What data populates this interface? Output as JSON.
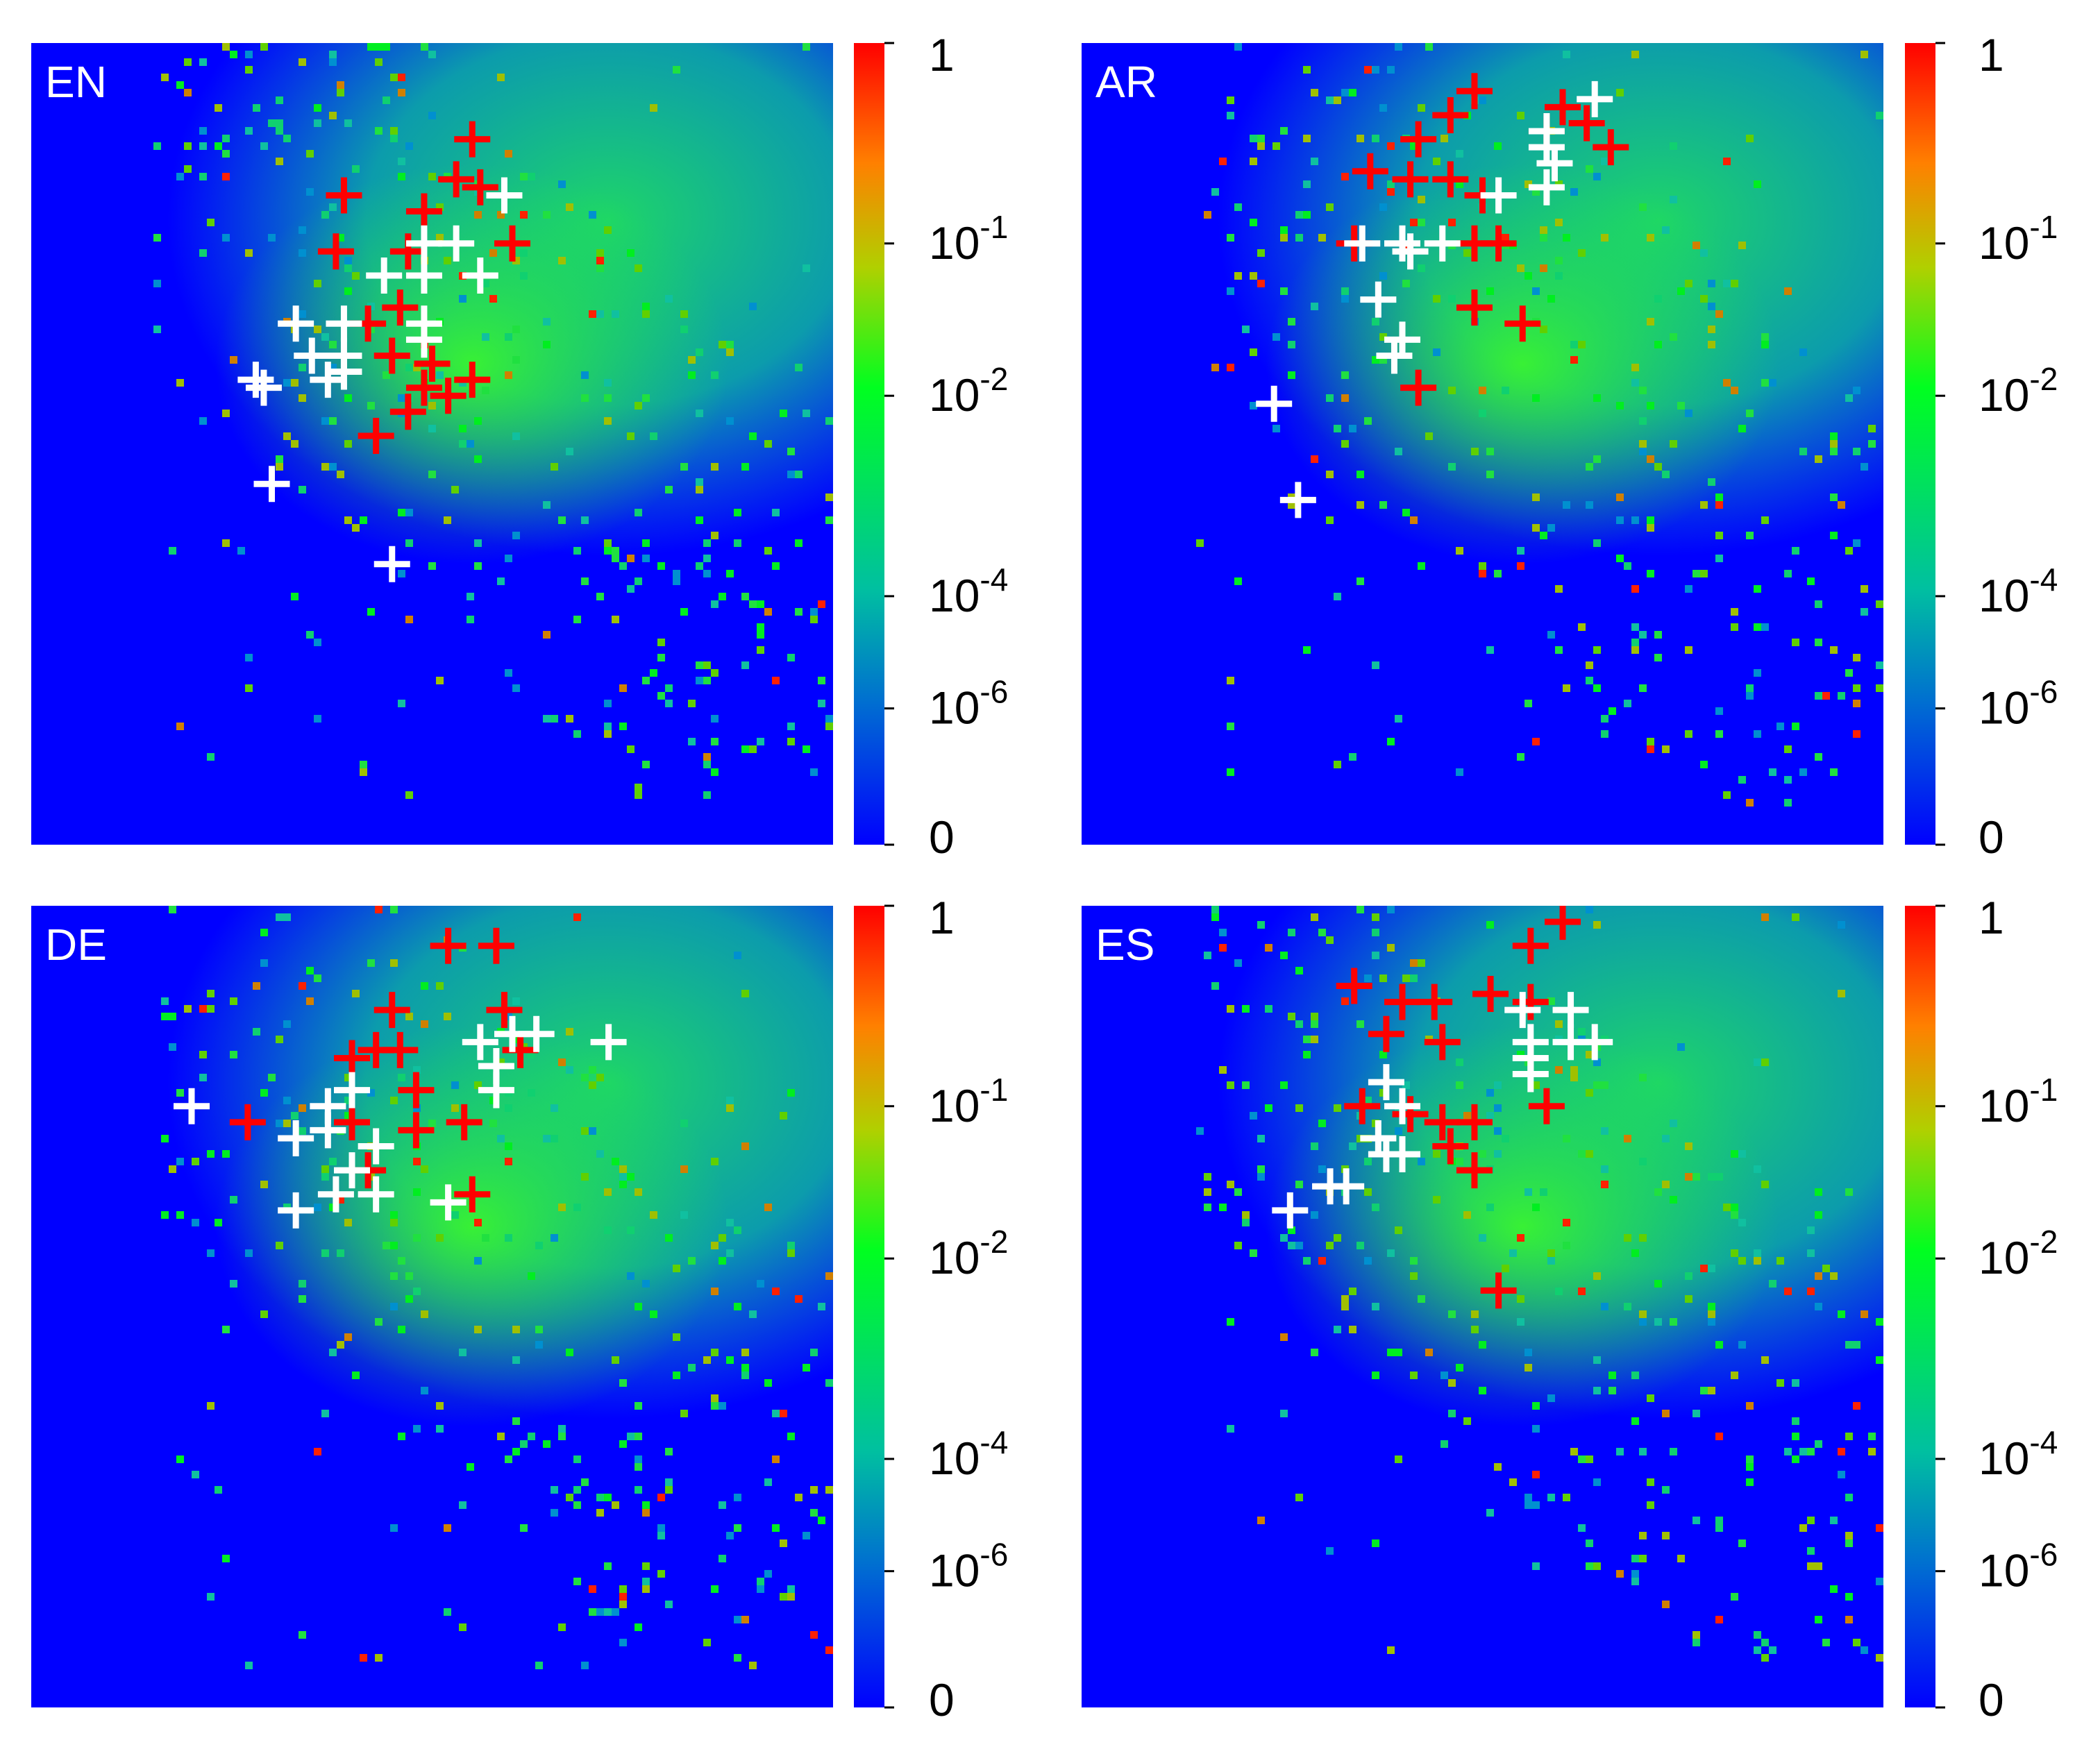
{
  "chart_data": [
    {
      "type": "heatmap",
      "panel_label": "EN",
      "colorbar": {
        "scale": "log",
        "range": [
          0,
          1
        ],
        "ticks": [
          {
            "label": "1",
            "exp": ""
          },
          {
            "label": "10",
            "exp": "-1"
          },
          {
            "label": "10",
            "exp": "-2"
          },
          {
            "label": "10",
            "exp": "-4"
          },
          {
            "label": "10",
            "exp": "-6"
          },
          {
            "label": "0",
            "exp": ""
          }
        ]
      },
      "red_markers": [
        [
          0.55,
          0.12
        ],
        [
          0.39,
          0.19
        ],
        [
          0.49,
          0.21
        ],
        [
          0.53,
          0.17
        ],
        [
          0.56,
          0.18
        ],
        [
          0.38,
          0.26
        ],
        [
          0.47,
          0.26
        ],
        [
          0.6,
          0.25
        ],
        [
          0.42,
          0.35
        ],
        [
          0.46,
          0.33
        ],
        [
          0.45,
          0.39
        ],
        [
          0.5,
          0.4
        ],
        [
          0.55,
          0.42
        ],
        [
          0.52,
          0.44
        ],
        [
          0.47,
          0.46
        ],
        [
          0.43,
          0.49
        ],
        [
          0.49,
          0.43
        ]
      ],
      "white_markers": [
        [
          0.59,
          0.19
        ],
        [
          0.49,
          0.25
        ],
        [
          0.53,
          0.25
        ],
        [
          0.44,
          0.29
        ],
        [
          0.49,
          0.29
        ],
        [
          0.56,
          0.29
        ],
        [
          0.33,
          0.35
        ],
        [
          0.39,
          0.35
        ],
        [
          0.49,
          0.35
        ],
        [
          0.35,
          0.39
        ],
        [
          0.39,
          0.39
        ],
        [
          0.49,
          0.37
        ],
        [
          0.37,
          0.42
        ],
        [
          0.39,
          0.41
        ],
        [
          0.28,
          0.42
        ],
        [
          0.29,
          0.43
        ],
        [
          0.3,
          0.55
        ],
        [
          0.45,
          0.65
        ]
      ]
    },
    {
      "type": "heatmap",
      "panel_label": "AR",
      "colorbar": {
        "scale": "log",
        "range": [
          0,
          1
        ],
        "ticks": [
          {
            "label": "1",
            "exp": ""
          },
          {
            "label": "10",
            "exp": "-1"
          },
          {
            "label": "10",
            "exp": "-2"
          },
          {
            "label": "10",
            "exp": "-4"
          },
          {
            "label": "10",
            "exp": "-6"
          },
          {
            "label": "0",
            "exp": ""
          }
        ]
      },
      "red_markers": [
        [
          0.49,
          0.06
        ],
        [
          0.46,
          0.09
        ],
        [
          0.42,
          0.12
        ],
        [
          0.36,
          0.16
        ],
        [
          0.41,
          0.17
        ],
        [
          0.46,
          0.17
        ],
        [
          0.5,
          0.19
        ],
        [
          0.6,
          0.08
        ],
        [
          0.63,
          0.1
        ],
        [
          0.66,
          0.13
        ],
        [
          0.58,
          0.11
        ],
        [
          0.34,
          0.25
        ],
        [
          0.49,
          0.25
        ],
        [
          0.52,
          0.25
        ],
        [
          0.49,
          0.33
        ],
        [
          0.55,
          0.35
        ],
        [
          0.42,
          0.43
        ]
      ],
      "white_markers": [
        [
          0.64,
          0.07
        ],
        [
          0.58,
          0.11
        ],
        [
          0.58,
          0.13
        ],
        [
          0.59,
          0.15
        ],
        [
          0.52,
          0.19
        ],
        [
          0.58,
          0.18
        ],
        [
          0.35,
          0.25
        ],
        [
          0.4,
          0.25
        ],
        [
          0.41,
          0.26
        ],
        [
          0.45,
          0.25
        ],
        [
          0.37,
          0.32
        ],
        [
          0.4,
          0.37
        ],
        [
          0.39,
          0.39
        ],
        [
          0.24,
          0.45
        ],
        [
          0.27,
          0.57
        ]
      ]
    },
    {
      "type": "heatmap",
      "panel_label": "DE",
      "colorbar": {
        "scale": "log",
        "range": [
          0,
          1
        ],
        "ticks": [
          {
            "label": "1",
            "exp": ""
          },
          {
            "label": "10",
            "exp": "-1"
          },
          {
            "label": "10",
            "exp": "-2"
          },
          {
            "label": "10",
            "exp": "-4"
          },
          {
            "label": "10",
            "exp": "-6"
          },
          {
            "label": "0",
            "exp": ""
          }
        ]
      },
      "red_markers": [
        [
          0.52,
          0.05
        ],
        [
          0.58,
          0.05
        ],
        [
          0.45,
          0.13
        ],
        [
          0.59,
          0.13
        ],
        [
          0.4,
          0.19
        ],
        [
          0.43,
          0.18
        ],
        [
          0.46,
          0.18
        ],
        [
          0.61,
          0.18
        ],
        [
          0.48,
          0.23
        ],
        [
          0.27,
          0.27
        ],
        [
          0.4,
          0.27
        ],
        [
          0.48,
          0.28
        ],
        [
          0.54,
          0.27
        ],
        [
          0.42,
          0.33
        ],
        [
          0.55,
          0.36
        ]
      ],
      "white_markers": [
        [
          0.56,
          0.17
        ],
        [
          0.6,
          0.16
        ],
        [
          0.63,
          0.16
        ],
        [
          0.72,
          0.17
        ],
        [
          0.58,
          0.2
        ],
        [
          0.58,
          0.23
        ],
        [
          0.4,
          0.23
        ],
        [
          0.2,
          0.25
        ],
        [
          0.37,
          0.25
        ],
        [
          0.33,
          0.29
        ],
        [
          0.37,
          0.28
        ],
        [
          0.43,
          0.3
        ],
        [
          0.4,
          0.33
        ],
        [
          0.43,
          0.36
        ],
        [
          0.38,
          0.36
        ],
        [
          0.52,
          0.37
        ],
        [
          0.33,
          0.38
        ]
      ]
    },
    {
      "type": "heatmap",
      "panel_label": "ES",
      "colorbar": {
        "scale": "log",
        "range": [
          0,
          1
        ],
        "ticks": [
          {
            "label": "1",
            "exp": ""
          },
          {
            "label": "10",
            "exp": "-1"
          },
          {
            "label": "10",
            "exp": "-2"
          },
          {
            "label": "10",
            "exp": "-4"
          },
          {
            "label": "10",
            "exp": "-6"
          },
          {
            "label": "0",
            "exp": ""
          }
        ]
      },
      "red_markers": [
        [
          0.6,
          0.02
        ],
        [
          0.56,
          0.05
        ],
        [
          0.34,
          0.1
        ],
        [
          0.4,
          0.12
        ],
        [
          0.44,
          0.12
        ],
        [
          0.51,
          0.11
        ],
        [
          0.56,
          0.12
        ],
        [
          0.38,
          0.16
        ],
        [
          0.45,
          0.17
        ],
        [
          0.35,
          0.25
        ],
        [
          0.41,
          0.26
        ],
        [
          0.45,
          0.27
        ],
        [
          0.49,
          0.27
        ],
        [
          0.46,
          0.3
        ],
        [
          0.49,
          0.33
        ],
        [
          0.58,
          0.25
        ],
        [
          0.52,
          0.48
        ]
      ],
      "white_markers": [
        [
          0.55,
          0.13
        ],
        [
          0.61,
          0.13
        ],
        [
          0.56,
          0.17
        ],
        [
          0.61,
          0.17
        ],
        [
          0.64,
          0.17
        ],
        [
          0.56,
          0.19
        ],
        [
          0.56,
          0.21
        ],
        [
          0.38,
          0.22
        ],
        [
          0.4,
          0.25
        ],
        [
          0.37,
          0.29
        ],
        [
          0.38,
          0.31
        ],
        [
          0.4,
          0.31
        ],
        [
          0.31,
          0.35
        ],
        [
          0.33,
          0.35
        ],
        [
          0.26,
          0.38
        ]
      ]
    }
  ]
}
